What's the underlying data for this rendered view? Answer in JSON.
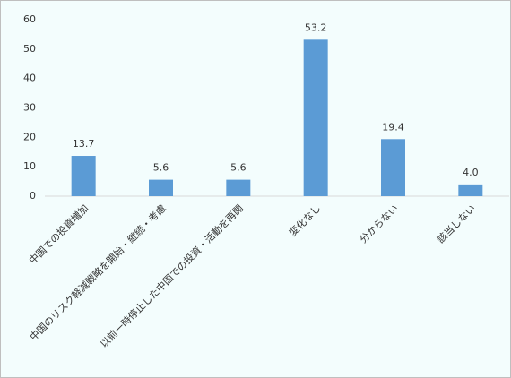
{
  "chart_data": {
    "type": "bar",
    "categories": [
      "中国での投資増加",
      "中国のリスク軽減戦略を開始・継続・考慮",
      "以前一時停止した中国での投資・活動を再開",
      "変化なし",
      "分からない",
      "該当しない"
    ],
    "values": [
      13.7,
      5.6,
      5.6,
      53.2,
      19.4,
      4.0
    ],
    "value_labels": [
      "13.7",
      "5.6",
      "5.6",
      "53.2",
      "19.4",
      "4.0"
    ],
    "color": "#5b9bd5",
    "ylim": [
      0,
      60
    ],
    "yticks": [
      0,
      10,
      20,
      30,
      40,
      50,
      60
    ],
    "grid": false
  }
}
